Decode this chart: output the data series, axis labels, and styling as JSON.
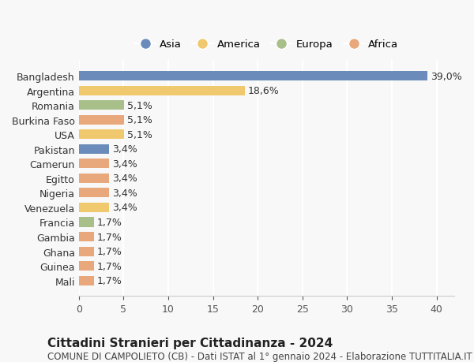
{
  "categories": [
    "Mali",
    "Guinea",
    "Ghana",
    "Gambia",
    "Francia",
    "Venezuela",
    "Nigeria",
    "Egitto",
    "Camerun",
    "Pakistan",
    "USA",
    "Burkina Faso",
    "Romania",
    "Argentina",
    "Bangladesh"
  ],
  "values": [
    1.7,
    1.7,
    1.7,
    1.7,
    1.7,
    3.4,
    3.4,
    3.4,
    3.4,
    3.4,
    5.1,
    5.1,
    5.1,
    18.6,
    39.0
  ],
  "labels": [
    "1,7%",
    "1,7%",
    "1,7%",
    "1,7%",
    "1,7%",
    "3,4%",
    "3,4%",
    "3,4%",
    "3,4%",
    "3,4%",
    "5,1%",
    "5,1%",
    "5,1%",
    "18,6%",
    "39,0%"
  ],
  "continent": [
    "Africa",
    "Africa",
    "Africa",
    "Africa",
    "Europa",
    "America",
    "Africa",
    "Africa",
    "Africa",
    "Asia",
    "America",
    "Africa",
    "Europa",
    "America",
    "Asia"
  ],
  "colors": {
    "Asia": "#6b8cba",
    "America": "#f0c96e",
    "Europa": "#a8bf8a",
    "Africa": "#e8a87c"
  },
  "legend_order": [
    "Asia",
    "America",
    "Europa",
    "Africa"
  ],
  "xlim": [
    0,
    42
  ],
  "xticks": [
    0,
    5,
    10,
    15,
    20,
    25,
    30,
    35,
    40
  ],
  "title": "Cittadini Stranieri per Cittadinanza - 2024",
  "subtitle": "COMUNE DI CAMPOLIETO (CB) - Dati ISTAT al 1° gennaio 2024 - Elaborazione TUTTITALIA.IT",
  "background_color": "#f8f8f8",
  "grid_color": "#ffffff",
  "bar_height": 0.65,
  "label_fontsize": 9,
  "tick_fontsize": 9,
  "title_fontsize": 11,
  "subtitle_fontsize": 8.5
}
